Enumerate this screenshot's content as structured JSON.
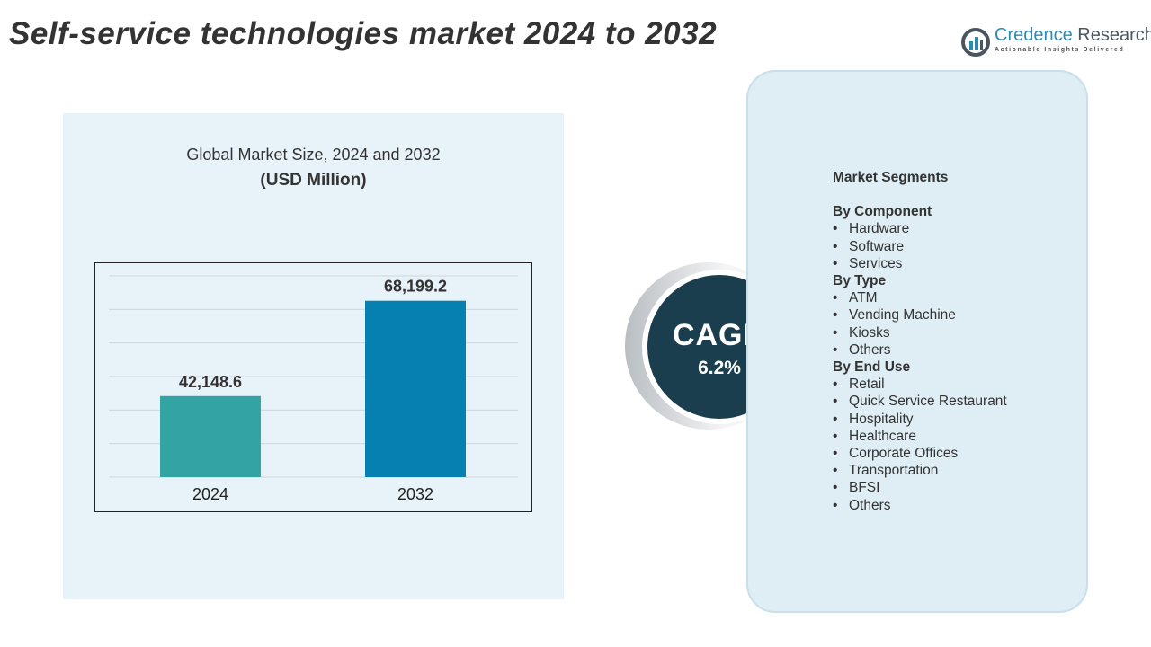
{
  "title": "Self-service technologies market 2024 to 2032",
  "logo": {
    "name_a": "Credence",
    "name_b": " Research",
    "tagline": "Actionable Insights Delivered",
    "icon": "bar-chart-circle-icon"
  },
  "chart_data": {
    "type": "bar",
    "title": "Global Market Size, 2024 and 2032",
    "subtitle": "(USD Million)",
    "categories": [
      "2024",
      "2032"
    ],
    "values": [
      42148.6,
      68199.2
    ],
    "value_labels": [
      "42,148.6",
      "68,199.2"
    ],
    "colors": [
      "#33a3a3",
      "#0680b0"
    ],
    "ylim": [
      20000,
      75000
    ],
    "grid": true
  },
  "cagr": {
    "label": "CAGR",
    "value": "6.2%"
  },
  "segments": {
    "heading": "Market Segments",
    "groups": [
      {
        "name": "By Component",
        "items": [
          "Hardware",
          "Software",
          "Services"
        ]
      },
      {
        "name": "By Type",
        "items": [
          "ATM",
          "Vending Machine",
          "Kiosks",
          "Others"
        ]
      },
      {
        "name": "By End Use",
        "items": [
          "Retail",
          "Quick Service Restaurant",
          "Hospitality",
          "Healthcare",
          "Corporate Offices",
          "Transportation",
          "BFSI",
          "Others"
        ]
      }
    ]
  }
}
